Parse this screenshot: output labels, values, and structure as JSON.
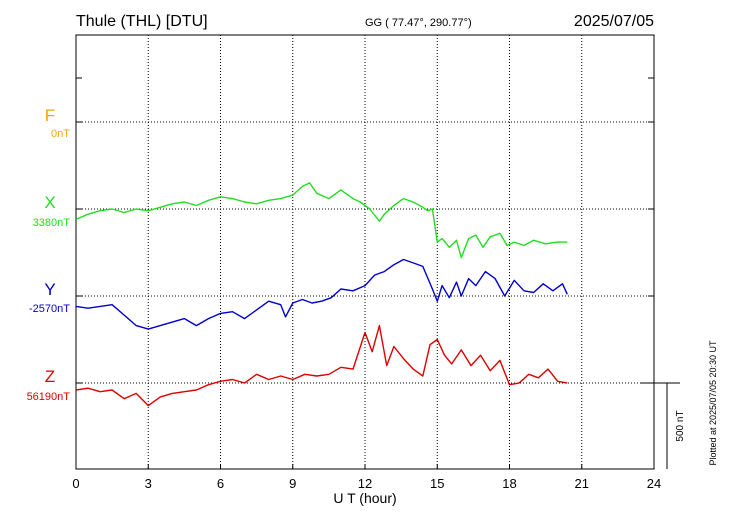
{
  "header": {
    "station": "Thule (THL)  [DTU]",
    "coords": "GG ( 77.47°, 290.77°)",
    "date": "2025/07/05"
  },
  "side_note": "Plotted at 2025/07/05 20:30 UT",
  "chart_data": {
    "type": "line",
    "xlabel": "U T (hour)",
    "xlim": [
      0,
      24
    ],
    "x_ticks": [
      "0",
      "3",
      "6",
      "9",
      "12",
      "15",
      "18",
      "21",
      "24"
    ],
    "scale_bar_label": "500 nT",
    "grid": true,
    "series": [
      {
        "name": "F",
        "baseline_label": "0nT",
        "color": "#f0a800",
        "x": [],
        "y": []
      },
      {
        "name": "X",
        "baseline_label": "3380nT",
        "color": "#22dd22",
        "x": [
          0,
          0.5,
          1.0,
          1.5,
          2.0,
          2.5,
          3.0,
          3.5,
          4.0,
          4.5,
          5.0,
          5.5,
          6.0,
          6.5,
          7.0,
          7.5,
          8.0,
          8.5,
          9.0,
          9.4,
          9.7,
          10.0,
          10.5,
          11.0,
          11.5,
          11.8,
          12.2,
          12.6,
          12.8,
          13.2,
          13.6,
          14.0,
          14.4,
          14.6,
          14.8,
          15.0,
          15.2,
          15.5,
          15.8,
          16.0,
          16.3,
          16.6,
          16.9,
          17.2,
          17.6,
          17.9,
          18.2,
          18.6,
          19.0,
          19.5,
          20.0,
          20.4
        ],
        "y": [
          3320,
          3350,
          3370,
          3380,
          3360,
          3380,
          3370,
          3390,
          3410,
          3420,
          3400,
          3430,
          3450,
          3440,
          3420,
          3410,
          3430,
          3440,
          3460,
          3510,
          3530,
          3470,
          3440,
          3490,
          3440,
          3420,
          3380,
          3310,
          3350,
          3400,
          3440,
          3420,
          3390,
          3370,
          3380,
          3190,
          3210,
          3160,
          3200,
          3100,
          3210,
          3230,
          3160,
          3220,
          3240,
          3170,
          3190,
          3170,
          3200,
          3180,
          3190,
          3190
        ]
      },
      {
        "name": "Y",
        "baseline_label": "-2570nT",
        "color": "#0000cc",
        "x": [
          0,
          0.5,
          1.0,
          1.5,
          2.0,
          2.5,
          3.0,
          3.5,
          4.0,
          4.5,
          5.0,
          5.5,
          6.0,
          6.5,
          7.0,
          7.5,
          8.0,
          8.5,
          8.7,
          9.0,
          9.4,
          9.8,
          10.2,
          10.6,
          11.0,
          11.5,
          12.0,
          12.4,
          12.8,
          13.2,
          13.6,
          14.0,
          14.4,
          14.8,
          15.0,
          15.2,
          15.5,
          15.8,
          16.0,
          16.3,
          16.6,
          17.0,
          17.4,
          17.8,
          18.2,
          18.6,
          19.0,
          19.4,
          19.8,
          20.2,
          20.4
        ],
        "y": [
          -2630,
          -2640,
          -2630,
          -2620,
          -2680,
          -2740,
          -2760,
          -2740,
          -2720,
          -2700,
          -2740,
          -2700,
          -2670,
          -2660,
          -2700,
          -2650,
          -2600,
          -2620,
          -2690,
          -2610,
          -2590,
          -2610,
          -2600,
          -2580,
          -2530,
          -2540,
          -2510,
          -2450,
          -2430,
          -2390,
          -2360,
          -2380,
          -2400,
          -2530,
          -2600,
          -2510,
          -2580,
          -2490,
          -2570,
          -2470,
          -2510,
          -2430,
          -2470,
          -2570,
          -2480,
          -2540,
          -2550,
          -2500,
          -2540,
          -2500,
          -2560
        ]
      },
      {
        "name": "Z",
        "baseline_label": "56190nT",
        "color": "#dd0000",
        "x": [
          0,
          0.5,
          1.0,
          1.5,
          2.0,
          2.5,
          3.0,
          3.5,
          4.0,
          4.5,
          5.0,
          5.5,
          6.0,
          6.5,
          7.0,
          7.5,
          8.0,
          8.5,
          9.0,
          9.5,
          10.0,
          10.5,
          11.0,
          11.5,
          12.0,
          12.3,
          12.6,
          12.9,
          13.2,
          13.6,
          14.0,
          14.4,
          14.7,
          15.0,
          15.3,
          15.6,
          16.0,
          16.4,
          16.8,
          17.2,
          17.6,
          18.0,
          18.4,
          18.8,
          19.2,
          19.6,
          20.0,
          20.4
        ],
        "y": [
          56150,
          56160,
          56140,
          56150,
          56100,
          56130,
          56060,
          56110,
          56130,
          56140,
          56150,
          56180,
          56200,
          56210,
          56190,
          56240,
          56210,
          56230,
          56210,
          56240,
          56230,
          56240,
          56280,
          56270,
          56480,
          56370,
          56520,
          56290,
          56400,
          56330,
          56270,
          56230,
          56410,
          56440,
          56350,
          56300,
          56380,
          56290,
          56350,
          56260,
          56320,
          56180,
          56190,
          56240,
          56220,
          56270,
          56200,
          56190
        ]
      }
    ]
  }
}
